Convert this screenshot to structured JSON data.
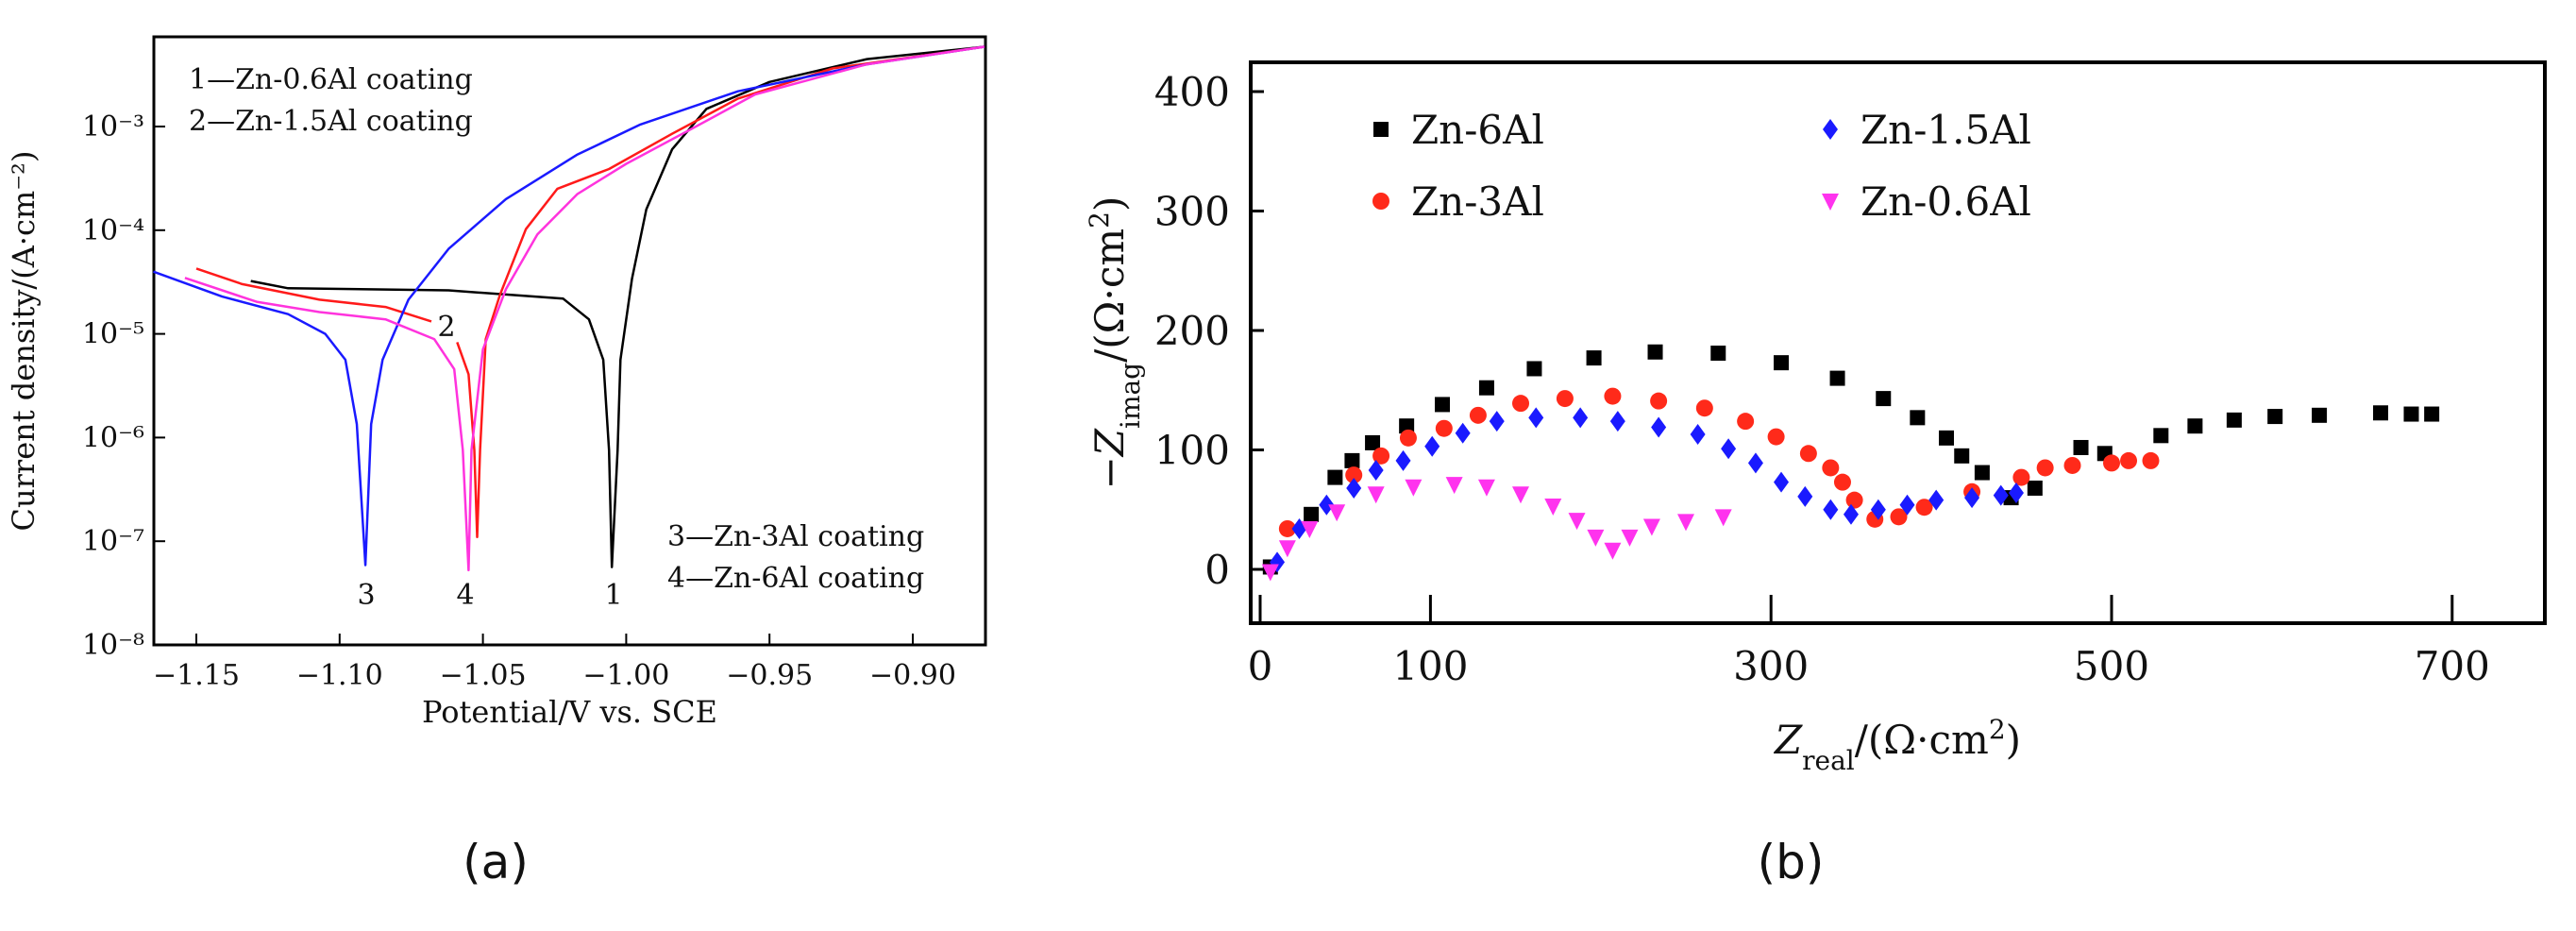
{
  "chart_data": [
    {
      "type": "line",
      "panel_label": "(a)",
      "xlabel": "Potential/V vs. SCE",
      "ylabel": "Current density/(A·cm⁻²)",
      "yscale": "log",
      "xlim": [
        -1.165,
        -0.875
      ],
      "ylim_log10": [
        -8,
        -2.13
      ],
      "x_ticks": [
        -1.15,
        -1.1,
        -1.05,
        -1.0,
        -0.95,
        -0.9
      ],
      "x_tick_labels": [
        "−1.15",
        "−1.10",
        "−1.05",
        "−1.00",
        "−0.95",
        "−0.90"
      ],
      "y_ticks_log10": [
        -8,
        -7,
        -6,
        -5,
        -4,
        -3
      ],
      "y_tick_labels": [
        "10⁻⁸",
        "10⁻⁷",
        "10⁻⁶",
        "10⁻⁵",
        "10⁻⁴",
        "10⁻³"
      ],
      "legend": [
        "1—Zn-0.6Al coating",
        "2—Zn-1.5Al coating",
        "3—Zn-3Al coating",
        "4—Zn-6Al coating"
      ],
      "series": [
        {
          "name": "1",
          "label": "1",
          "color": "#000000",
          "x": [
            -1.131,
            -1.118,
            -1.062,
            -1.022,
            -1.013,
            -1.008,
            -1.006,
            -1.005,
            -1.003,
            -1.002,
            -0.998,
            -0.993,
            -0.984,
            -0.972,
            -0.95,
            -0.916,
            -0.875
          ],
          "log10_y": [
            -4.49,
            -4.56,
            -4.58,
            -4.66,
            -4.86,
            -5.25,
            -6.12,
            -7.25,
            -6.12,
            -5.25,
            -4.47,
            -3.8,
            -3.22,
            -2.83,
            -2.57,
            -2.35,
            -2.23
          ]
        },
        {
          "name": "2",
          "label": "2",
          "color": "#ff1a1a",
          "segments": [
            {
              "x": [
                -1.15,
                -1.134,
                -1.107,
                -1.084,
                -1.068
              ],
              "log10_y": [
                -4.37,
                -4.52,
                -4.67,
                -4.74,
                -4.88
              ]
            },
            {
              "x": [
                -1.059,
                -1.055,
                -1.053,
                -1.052,
                -1.051,
                -1.049,
                -1.044,
                -1.035,
                -1.024,
                -1.006,
                -0.984,
                -0.961,
                -0.928,
                -0.875
              ],
              "log10_y": [
                -5.08,
                -5.39,
                -6.12,
                -6.96,
                -6.12,
                -5.05,
                -4.62,
                -3.99,
                -3.6,
                -3.41,
                -3.07,
                -2.73,
                -2.44,
                -2.23
              ]
            }
          ]
        },
        {
          "name": "3",
          "label": "3",
          "color": "#1a1aff",
          "x": [
            -1.165,
            -1.141,
            -1.118,
            -1.105,
            -1.098,
            -1.094,
            -1.091,
            -1.089,
            -1.085,
            -1.076,
            -1.062,
            -1.042,
            -1.017,
            -0.995,
            -0.961,
            -0.916,
            -0.875
          ],
          "log10_y": [
            -4.4,
            -4.64,
            -4.81,
            -5.0,
            -5.25,
            -5.87,
            -7.23,
            -5.87,
            -5.25,
            -4.67,
            -4.18,
            -3.7,
            -3.27,
            -2.98,
            -2.66,
            -2.4,
            -2.23
          ]
        },
        {
          "name": "4",
          "label": "4",
          "color": "#ff33dd",
          "x": [
            -1.154,
            -1.129,
            -1.107,
            -1.084,
            -1.067,
            -1.06,
            -1.057,
            -1.055,
            -1.054,
            -1.05,
            -1.042,
            -1.031,
            -1.017,
            -1.0,
            -0.977,
            -0.955,
            -0.916,
            -0.875
          ],
          "log10_y": [
            -4.46,
            -4.69,
            -4.79,
            -4.86,
            -5.05,
            -5.34,
            -6.12,
            -7.28,
            -6.12,
            -5.15,
            -4.57,
            -4.04,
            -3.65,
            -3.36,
            -3.02,
            -2.69,
            -2.4,
            -2.23
          ]
        }
      ]
    },
    {
      "type": "scatter",
      "panel_label": "(b)",
      "xlabel": {
        "main": "Z",
        "sub": "real",
        "rest": "/(Ω·cm",
        "sup": "2",
        "end": ")"
      },
      "ylabel": {
        "main": "−Z",
        "sub": "imag",
        "rest": "/(Ω·cm",
        "sup": "2",
        "end": ")"
      },
      "xlim": [
        -5,
        754
      ],
      "ylim": [
        -45,
        424
      ],
      "x_ticks": [
        0,
        100,
        300,
        500,
        700
      ],
      "x_tick_labels": [
        "0",
        "100",
        "300",
        "500",
        "700"
      ],
      "y_ticks": [
        0,
        100,
        200,
        300,
        400
      ],
      "y_tick_labels": [
        "0",
        "100",
        "200",
        "300",
        "400"
      ],
      "legend_position": "top-left, two columns",
      "series": [
        {
          "name": "Zn-6Al",
          "marker": "square",
          "color": "#000000",
          "x": [
            6,
            30,
            44,
            54,
            66,
            86,
            107,
            133,
            161,
            196,
            232,
            269,
            306,
            339,
            366,
            386,
            403,
            412,
            424,
            441,
            455,
            482,
            496,
            529,
            549,
            572,
            596,
            622,
            658,
            676,
            688
          ],
          "y": [
            2,
            46,
            77,
            91,
            106,
            120,
            138,
            152,
            168,
            177,
            182,
            181,
            173,
            160,
            143,
            127,
            110,
            95,
            81,
            60,
            68,
            102,
            97,
            112,
            120,
            125,
            128,
            129,
            131,
            130,
            130
          ]
        },
        {
          "name": "Zn-3Al",
          "marker": "circle",
          "color": "#ff2a1a",
          "x": [
            16,
            55,
            71,
            87,
            108,
            128,
            153,
            179,
            207,
            234,
            261,
            285,
            303,
            322,
            335,
            342,
            349,
            361,
            375,
            390,
            418,
            447,
            461,
            477,
            500,
            510,
            523
          ],
          "y": [
            34,
            79,
            95,
            110,
            118,
            129,
            139,
            143,
            145,
            141,
            135,
            124,
            111,
            97,
            85,
            73,
            58,
            42,
            44,
            52,
            65,
            77,
            85,
            87,
            89,
            91,
            91
          ]
        },
        {
          "name": "Zn-1.5Al",
          "marker": "diamond",
          "color": "#1a1aff",
          "x": [
            10,
            23,
            39,
            55,
            68,
            84,
            101,
            119,
            139,
            162,
            188,
            210,
            234,
            257,
            275,
            291,
            306,
            320,
            335,
            347,
            363,
            380,
            397,
            418,
            435,
            444
          ],
          "y": [
            6,
            34,
            54,
            68,
            83,
            91,
            103,
            114,
            124,
            127,
            127,
            124,
            119,
            113,
            101,
            89,
            73,
            61,
            50,
            46,
            50,
            54,
            58,
            60,
            62,
            64
          ]
        },
        {
          "name": "Zn-0.6Al",
          "marker": "triangle-down",
          "color": "#ff33ee",
          "x": [
            6,
            16,
            29,
            45,
            68,
            90,
            114,
            133,
            153,
            172,
            186,
            197,
            207,
            217,
            230,
            250,
            272
          ],
          "y": [
            -2,
            18,
            34,
            48,
            63,
            69,
            71,
            69,
            63,
            53,
            41,
            27,
            16,
            27,
            36,
            40,
            44
          ]
        }
      ]
    }
  ]
}
